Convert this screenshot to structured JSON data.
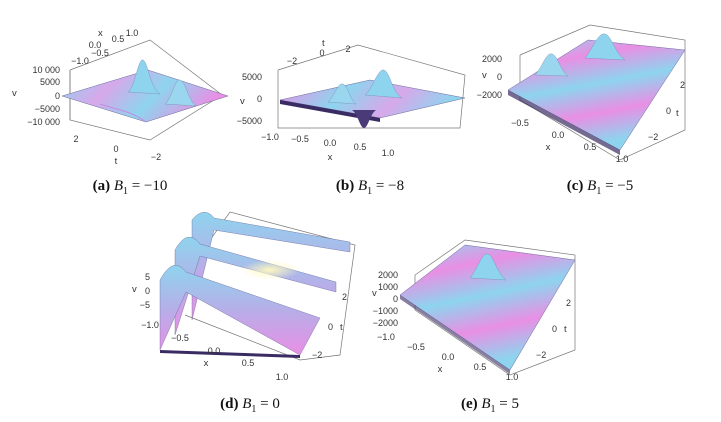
{
  "colors": {
    "surface_top": "#8ed4ee",
    "surface_mid": "#c9a6e6",
    "surface_low": "#e98fe4",
    "shadow": "#3a2c63",
    "axis": "#555555"
  },
  "panels": [
    {
      "id": "a",
      "caption": {
        "tag": "(a)",
        "var": "B",
        "sub": "1",
        "eq": " = −10"
      },
      "axes": {
        "v_label": "v",
        "v_ticks": [
          "10 000",
          "5000",
          "0",
          "−5000",
          "−10 000"
        ],
        "x_label": "x",
        "x_ticks": [
          "−1.0",
          "−0.5",
          "0.0",
          "0.5",
          "1.0"
        ],
        "t_label": "t",
        "t_ticks": [
          "2",
          "0",
          "−2"
        ]
      }
    },
    {
      "id": "b",
      "caption": {
        "tag": "(b)",
        "var": "B",
        "sub": "1",
        "eq": " = −8"
      },
      "axes": {
        "v_label": "v",
        "v_ticks": [
          "5000",
          "0",
          "−5000"
        ],
        "x_label": "x",
        "x_ticks": [
          "−1.0",
          "−0.5",
          "0.0",
          "0.5",
          "1.0"
        ],
        "t_label": "t",
        "t_ticks": [
          "−2",
          "0",
          "2"
        ]
      }
    },
    {
      "id": "c",
      "caption": {
        "tag": "(c)",
        "var": "B",
        "sub": "1",
        "eq": " = −5"
      },
      "axes": {
        "v_label": "v",
        "v_ticks": [
          "2000",
          "0",
          "−2000"
        ],
        "x_label": "x",
        "x_ticks": [
          "−0.5",
          "0.0",
          "0.5",
          "1.0"
        ],
        "t_label": "t",
        "t_ticks": [
          "2",
          "0",
          "−2"
        ]
      }
    },
    {
      "id": "d",
      "caption": {
        "tag": "(d)",
        "var": "B",
        "sub": "1",
        "eq": " = 0"
      },
      "axes": {
        "v_label": "v",
        "v_ticks": [
          "5",
          "0",
          "−5"
        ],
        "x_label": "x",
        "x_ticks": [
          "−1.0",
          "−0.5",
          "0.0",
          "0.5",
          "1.0"
        ],
        "t_label": "t",
        "t_ticks": [
          "2",
          "0",
          "−2"
        ]
      }
    },
    {
      "id": "e",
      "caption": {
        "tag": "(e)",
        "var": "B",
        "sub": "1",
        "eq": " = 5"
      },
      "axes": {
        "v_label": "v",
        "v_ticks": [
          "2000",
          "1000",
          "0",
          "−1000",
          "−2000"
        ],
        "x_label": "x",
        "x_ticks": [
          "−1.0",
          "−0.5",
          "0.0",
          "0.5",
          "1.0"
        ],
        "t_label": "t",
        "t_ticks": [
          "2",
          "0",
          "−2"
        ]
      }
    }
  ]
}
